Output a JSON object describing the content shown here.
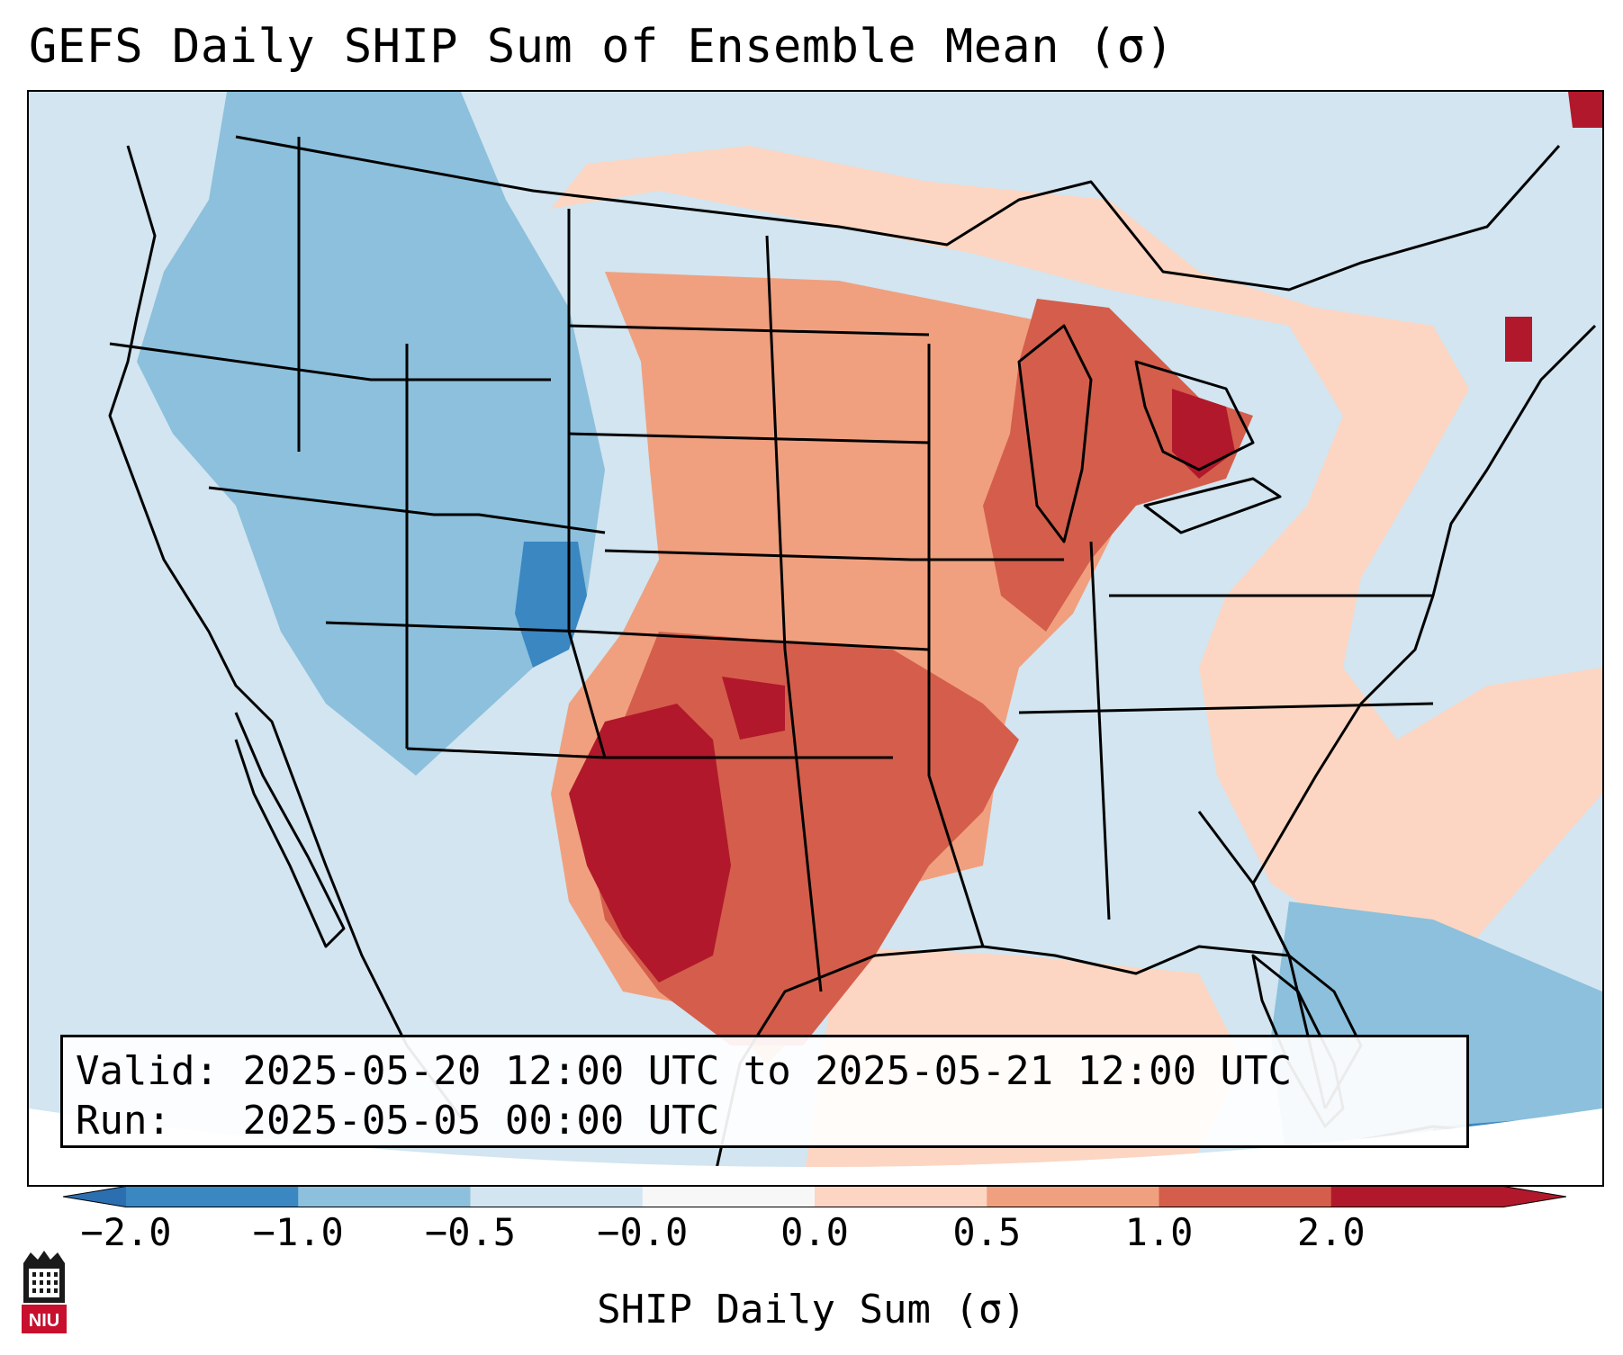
{
  "title": "GEFS Daily SHIP Sum of Ensemble Mean (σ)",
  "info": {
    "valid_label": "Valid:",
    "valid_value": "2025-05-20 12:00 UTC to 2025-05-21 12:00 UTC",
    "run_label": "Run:",
    "run_value": "2025-05-05 00:00 UTC"
  },
  "colorbar": {
    "label": "SHIP Daily Sum (σ)",
    "ticks": [
      "−2.0",
      "−1.0",
      "−0.5",
      "−0.0",
      "0.0",
      "0.5",
      "1.0",
      "2.0"
    ],
    "bin_colors": [
      "#3a87c2",
      "#8cc0dc",
      "#d2e5f0",
      "#f7f7f7",
      "#fcd6c2",
      "#f0a07f",
      "#d45e4b",
      "#b2182b"
    ],
    "extend_low_color": "#2c6fb0",
    "extend_high_color": "#b2182b"
  },
  "map": {
    "background_color": "#d2e5f0",
    "outline_color": "#000000"
  },
  "logo": {
    "text": "NIU",
    "color": "#c8102e"
  }
}
